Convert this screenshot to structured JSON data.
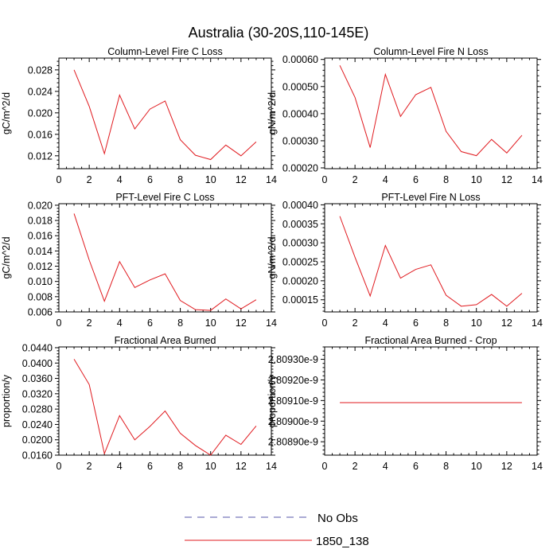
{
  "figure": {
    "title": "Australia (30-20S,110-145E)"
  },
  "legend": {
    "entries": [
      {
        "label": "No Obs",
        "color": "#5555aa",
        "dash": "dashed"
      },
      {
        "label": "1850_138",
        "color": "#e0191e",
        "dash": "solid"
      }
    ],
    "placement": "bottom-center"
  },
  "chart_data": [
    {
      "type": "line",
      "title": "Column-Level Fire C Loss",
      "ylabel": "gC/m^2/d",
      "xlim": [
        0,
        14
      ],
      "ylim": [
        0.0096,
        0.0302
      ],
      "xticks": [
        0,
        2,
        4,
        6,
        8,
        10,
        12,
        14
      ],
      "yticks": [
        0.012,
        0.016,
        0.02,
        0.024,
        0.028
      ],
      "ytick_labels": [
        "0.012",
        "0.016",
        "0.020",
        "0.024",
        "0.028"
      ],
      "grid": false,
      "series": [
        {
          "name": "1850_138",
          "color": "#e0191e",
          "x": [
            1,
            2,
            3,
            4,
            5,
            6,
            7,
            8,
            9,
            10,
            11,
            12,
            13
          ],
          "y": [
            0.028,
            0.0212,
            0.0124,
            0.0233,
            0.017,
            0.0207,
            0.0222,
            0.015,
            0.0121,
            0.0113,
            0.014,
            0.012,
            0.0146
          ]
        }
      ]
    },
    {
      "type": "line",
      "title": "Column-Level Fire N Loss",
      "ylabel": "gN/m^2/d",
      "xlim": [
        0,
        14
      ],
      "ylim": [
        0.000197,
        0.000605
      ],
      "xticks": [
        0,
        2,
        4,
        6,
        8,
        10,
        12,
        14
      ],
      "yticks": [
        0.0002,
        0.0003,
        0.0004,
        0.0005,
        0.0006
      ],
      "ytick_labels": [
        "0.00020",
        "0.00030",
        "0.00040",
        "0.00050",
        "0.00060"
      ],
      "grid": false,
      "series": [
        {
          "name": "1850_138",
          "color": "#e0191e",
          "x": [
            1,
            2,
            3,
            4,
            5,
            6,
            7,
            8,
            9,
            10,
            11,
            12,
            13
          ],
          "y": [
            0.000578,
            0.00046,
            0.000275,
            0.000545,
            0.00039,
            0.00047,
            0.000497,
            0.000335,
            0.00026,
            0.000245,
            0.000305,
            0.000255,
            0.00032
          ]
        }
      ]
    },
    {
      "type": "line",
      "title": "PFT-Level Fire C Loss",
      "ylabel": "gC/m^2/d",
      "xlim": [
        0,
        14
      ],
      "ylim": [
        0.006,
        0.0202
      ],
      "xticks": [
        0,
        2,
        4,
        6,
        8,
        10,
        12,
        14
      ],
      "yticks": [
        0.006,
        0.008,
        0.01,
        0.012,
        0.014,
        0.016,
        0.018,
        0.02
      ],
      "ytick_labels": [
        "0.006",
        "0.008",
        "0.010",
        "0.012",
        "0.014",
        "0.016",
        "0.018",
        "0.020"
      ],
      "grid": false,
      "series": [
        {
          "name": "1850_138",
          "color": "#e0191e",
          "x": [
            1,
            2,
            3,
            4,
            5,
            6,
            7,
            8,
            9,
            10,
            11,
            12,
            13
          ],
          "y": [
            0.0189,
            0.0128,
            0.0074,
            0.0126,
            0.0092,
            0.0102,
            0.011,
            0.0075,
            0.0063,
            0.0062,
            0.0077,
            0.0064,
            0.0076
          ]
        }
      ]
    },
    {
      "type": "line",
      "title": "PFT-Level Fire N Loss",
      "ylabel": "gN/m^2/d",
      "xlim": [
        0,
        14
      ],
      "ylim": [
        0.000118,
        0.000403
      ],
      "xticks": [
        0,
        2,
        4,
        6,
        8,
        10,
        12,
        14
      ],
      "yticks": [
        0.00015,
        0.0002,
        0.00025,
        0.0003,
        0.00035,
        0.0004
      ],
      "ytick_labels": [
        "0.00015",
        "0.00020",
        "0.00025",
        "0.00030",
        "0.00035",
        "0.00040"
      ],
      "grid": false,
      "series": [
        {
          "name": "1850_138",
          "color": "#e0191e",
          "x": [
            1,
            2,
            3,
            4,
            5,
            6,
            7,
            8,
            9,
            10,
            11,
            12,
            13
          ],
          "y": [
            0.00037,
            0.000262,
            0.00016,
            0.000293,
            0.000207,
            0.00023,
            0.000242,
            0.000162,
            0.000133,
            0.000137,
            0.000164,
            0.000133,
            0.000167
          ]
        }
      ]
    },
    {
      "type": "line",
      "title": "Fractional Area Burned",
      "ylabel": "proportion/y",
      "xlim": [
        0,
        14
      ],
      "ylim": [
        0.016,
        0.0442
      ],
      "xticks": [
        0,
        2,
        4,
        6,
        8,
        10,
        12,
        14
      ],
      "yticks": [
        0.016,
        0.02,
        0.024,
        0.028,
        0.032,
        0.036,
        0.04,
        0.044
      ],
      "ytick_labels": [
        "0.0160",
        "0.0200",
        "0.0240",
        "0.0280",
        "0.0320",
        "0.0360",
        "0.0400",
        "0.0440"
      ],
      "grid": false,
      "series": [
        {
          "name": "1850_138",
          "color": "#e0191e",
          "x": [
            1,
            2,
            3,
            4,
            5,
            6,
            7,
            8,
            9,
            10,
            11,
            12,
            13
          ],
          "y": [
            0.041,
            0.0344,
            0.0164,
            0.0263,
            0.02,
            0.0235,
            0.0275,
            0.0217,
            0.0185,
            0.016,
            0.0212,
            0.0188,
            0.0236
          ]
        }
      ]
    },
    {
      "type": "line",
      "title": "Fractional Area Burned - Crop",
      "ylabel": "proportion/y",
      "xlim": [
        0,
        14
      ],
      "ylim": [
        2.808835e-09,
        2.80936e-09
      ],
      "xticks": [
        0,
        2,
        4,
        6,
        8,
        10,
        12,
        14
      ],
      "yticks": [
        2.8089e-09,
        2.809e-09,
        2.8091e-09,
        2.8092e-09,
        2.8093e-09
      ],
      "ytick_labels": [
        "2.80890e-9",
        "2.80900e-9",
        "2.80910e-9",
        "2.80920e-9",
        "2.80930e-9"
      ],
      "grid": false,
      "series": [
        {
          "name": "1850_138",
          "color": "#e0191e",
          "x": [
            1,
            2,
            3,
            4,
            5,
            6,
            7,
            8,
            9,
            10,
            11,
            12,
            13
          ],
          "y": [
            2.80909e-09,
            2.80909e-09,
            2.80909e-09,
            2.80909e-09,
            2.80909e-09,
            2.80909e-09,
            2.80909e-09,
            2.80909e-09,
            2.80909e-09,
            2.80909e-09,
            2.80909e-09,
            2.80909e-09,
            2.80909e-09
          ]
        }
      ]
    }
  ]
}
